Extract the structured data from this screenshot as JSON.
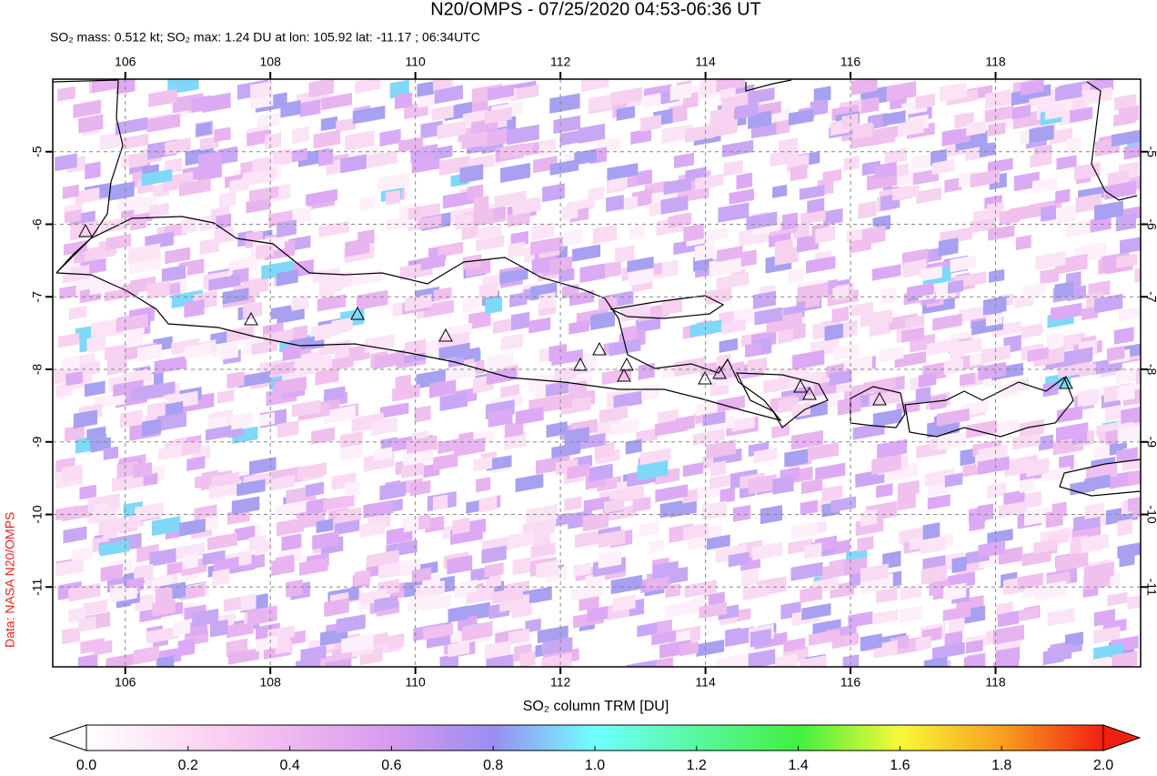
{
  "header": {
    "title": "N20/OMPS - 07/25/2020 04:53-06:36 UT",
    "subtitle": "SO₂ mass: 0.512 kt; SO₂ max: 1.24 DU at lon: 105.92 lat: -11.17 ; 06:34UTC"
  },
  "map": {
    "xlim": [
      105,
      120
    ],
    "ylim": [
      -12.1,
      -4
    ],
    "xticks": [
      106,
      108,
      110,
      112,
      114,
      116,
      118
    ],
    "yticks": [
      -5,
      -6,
      -7,
      -8,
      -9,
      -10,
      -11
    ],
    "grid": true
  },
  "colorbar": {
    "label": "SO₂ column TRM [DU]",
    "clim": [
      0,
      2
    ],
    "ticks": [
      {
        "value": 0,
        "label": "0.0"
      },
      0.2,
      0.4,
      0.6,
      0.8,
      {
        "value": 1,
        "label": "1.0"
      },
      1.2,
      1.4,
      1.6,
      1.8,
      {
        "value": 2,
        "label": "2.0"
      }
    ]
  },
  "credit": "Data: NASA N20/OMPS"
}
